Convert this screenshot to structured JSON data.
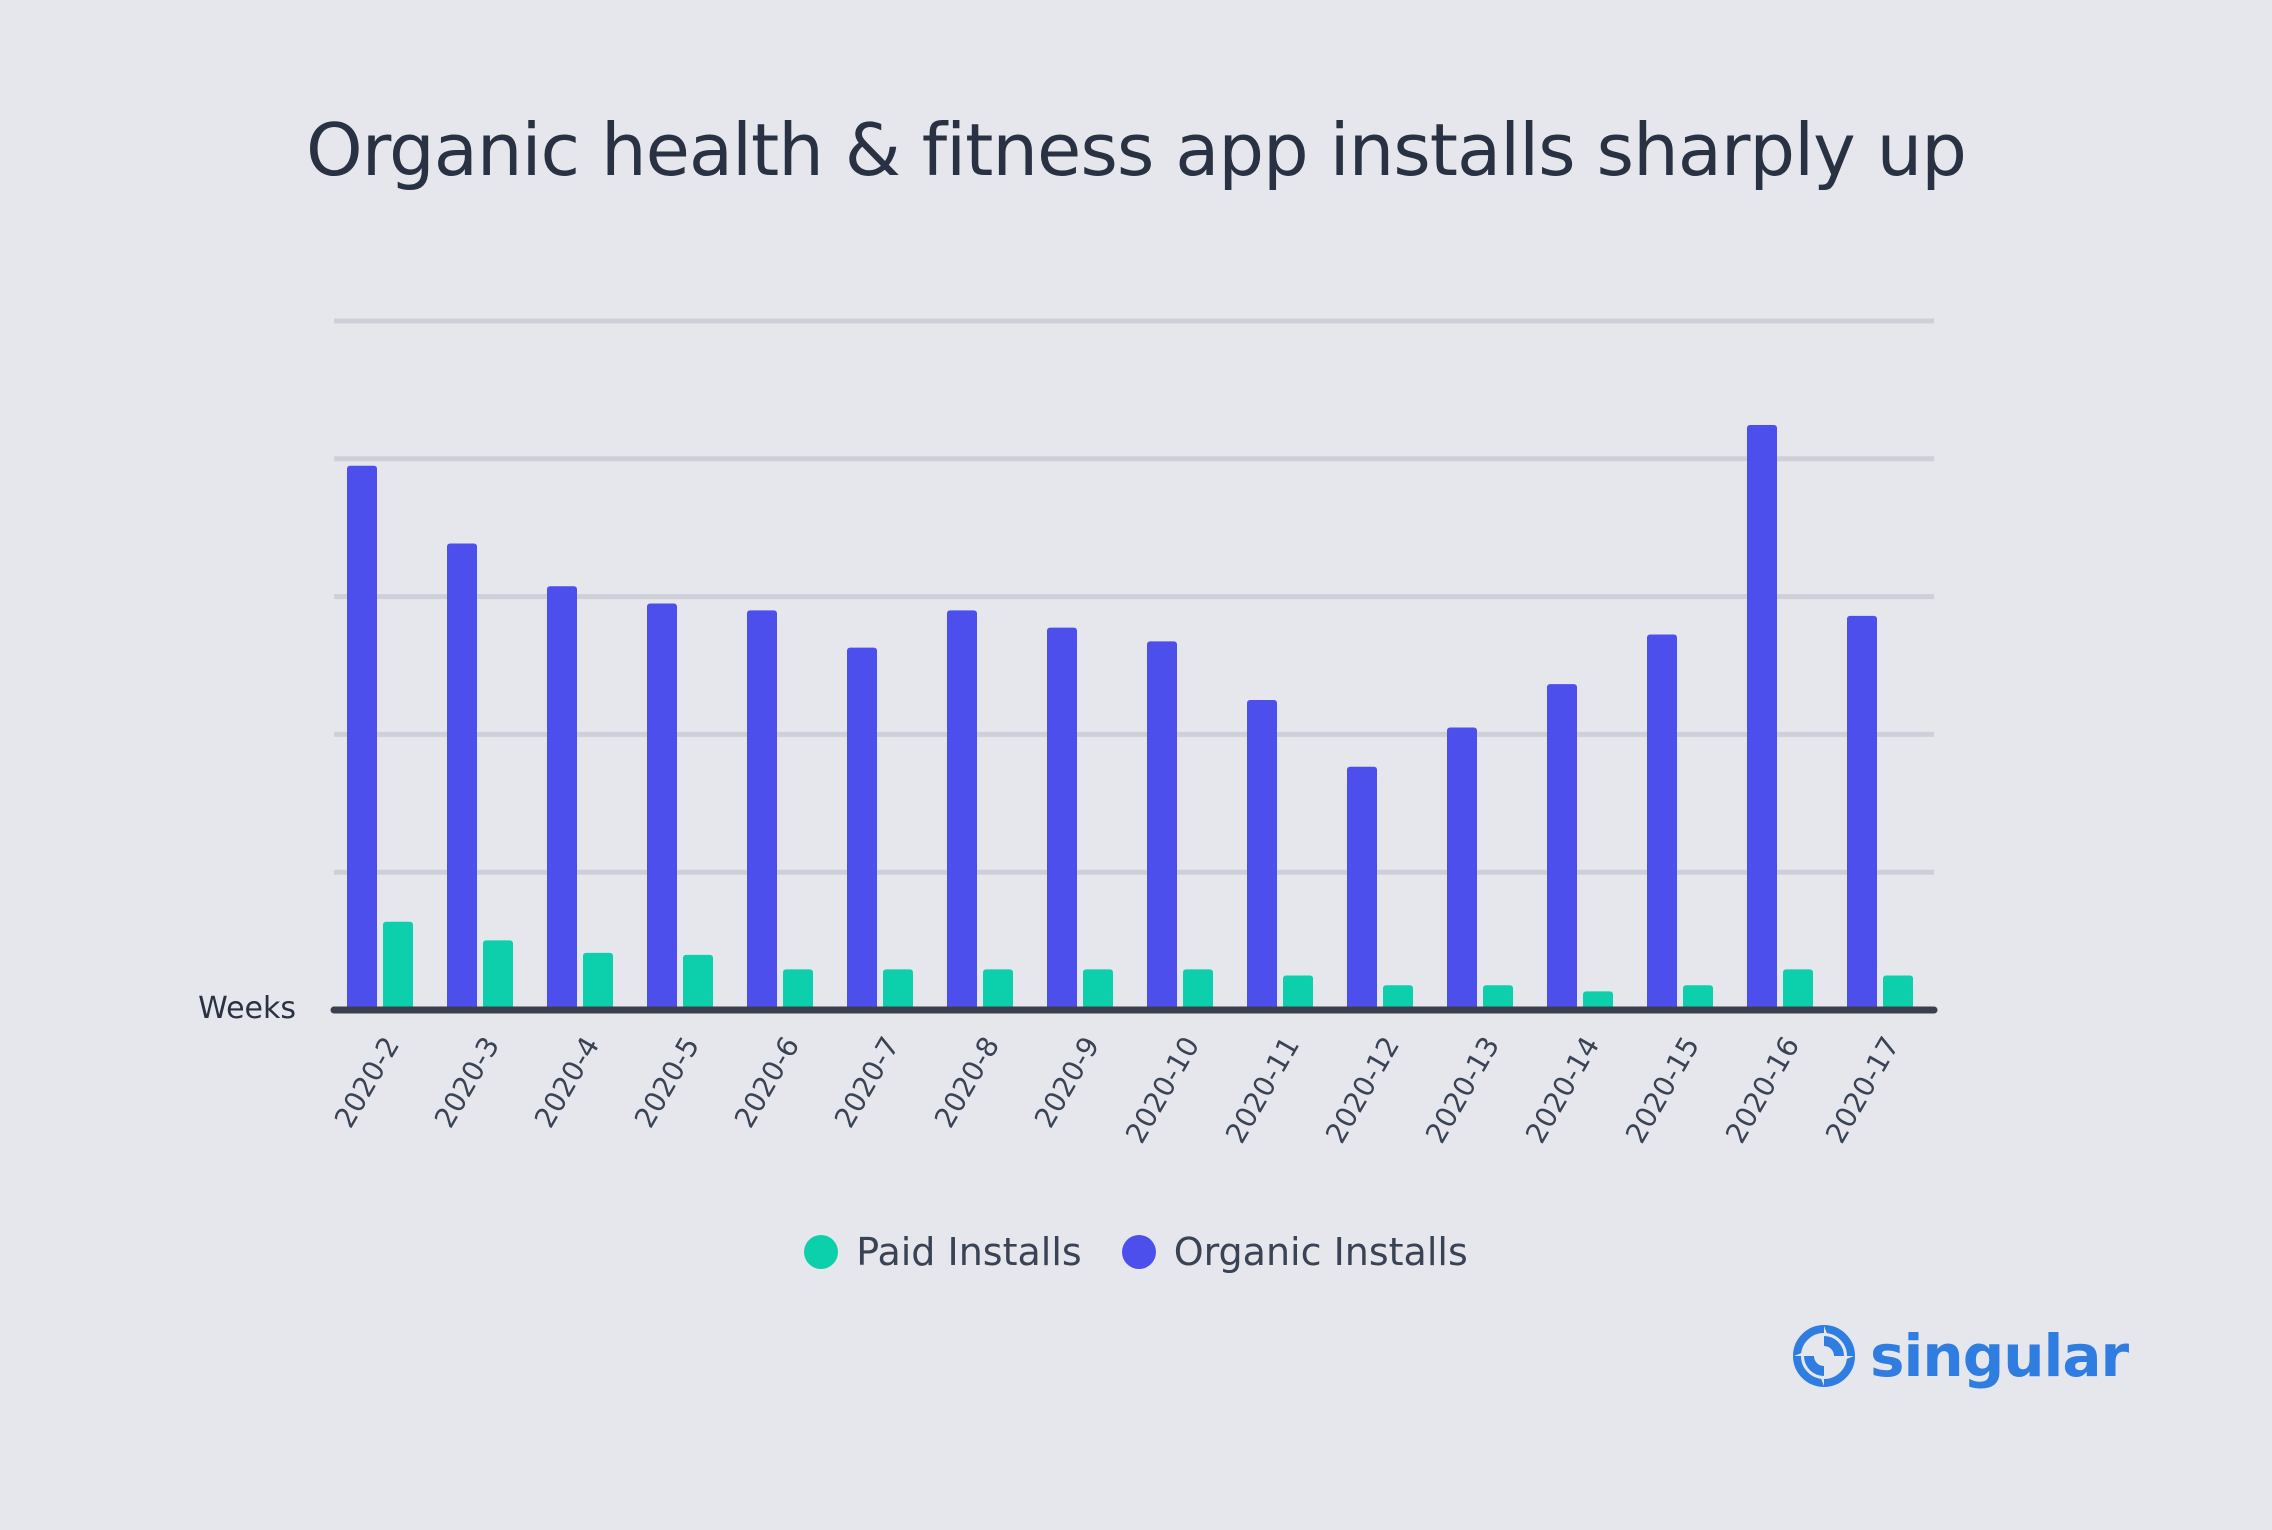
{
  "title": "Organic health & fitness app installs sharply up",
  "colors": {
    "paid": "#0bd0ab",
    "organic": "#4d4fec",
    "grid": "#cdd0d9",
    "axis": "#3a3f4b",
    "text": "#283243",
    "brand": "#2f7de1"
  },
  "legend": {
    "paid_label": "Paid Installs",
    "organic_label": "Organic Installs"
  },
  "logo": {
    "text": "singular"
  },
  "chart_data": {
    "type": "bar",
    "title": "Organic health & fitness app installs sharply up",
    "xlabel": "Weeks",
    "ylabel": "",
    "ylim": [
      0,
      100
    ],
    "grid": true,
    "y_ticks_labeled": false,
    "legend_position": "bottom-center",
    "categories": [
      "2020-2",
      "2020-3",
      "2020-4",
      "2020-5",
      "2020-6",
      "2020-7",
      "2020-8",
      "2020-9",
      "2020-10",
      "2020-11",
      "2020-12",
      "2020-13",
      "2020-14",
      "2020-15",
      "2020-16",
      "2020-17"
    ],
    "series": [
      {
        "name": "Organic Installs",
        "color": "#4d4fec",
        "values": [
          79,
          67.7,
          61.5,
          59,
          58,
          52.6,
          58,
          55.5,
          53.5,
          45,
          35.3,
          41,
          47.3,
          54.5,
          84.9,
          57.2
        ]
      },
      {
        "name": "Paid Installs",
        "color": "#0bd0ab",
        "values": [
          12.8,
          10.1,
          8.3,
          8.0,
          5.9,
          5.9,
          5.9,
          5.9,
          5.9,
          5.0,
          3.6,
          3.6,
          2.7,
          3.6,
          5.9,
          5.0
        ]
      }
    ]
  }
}
